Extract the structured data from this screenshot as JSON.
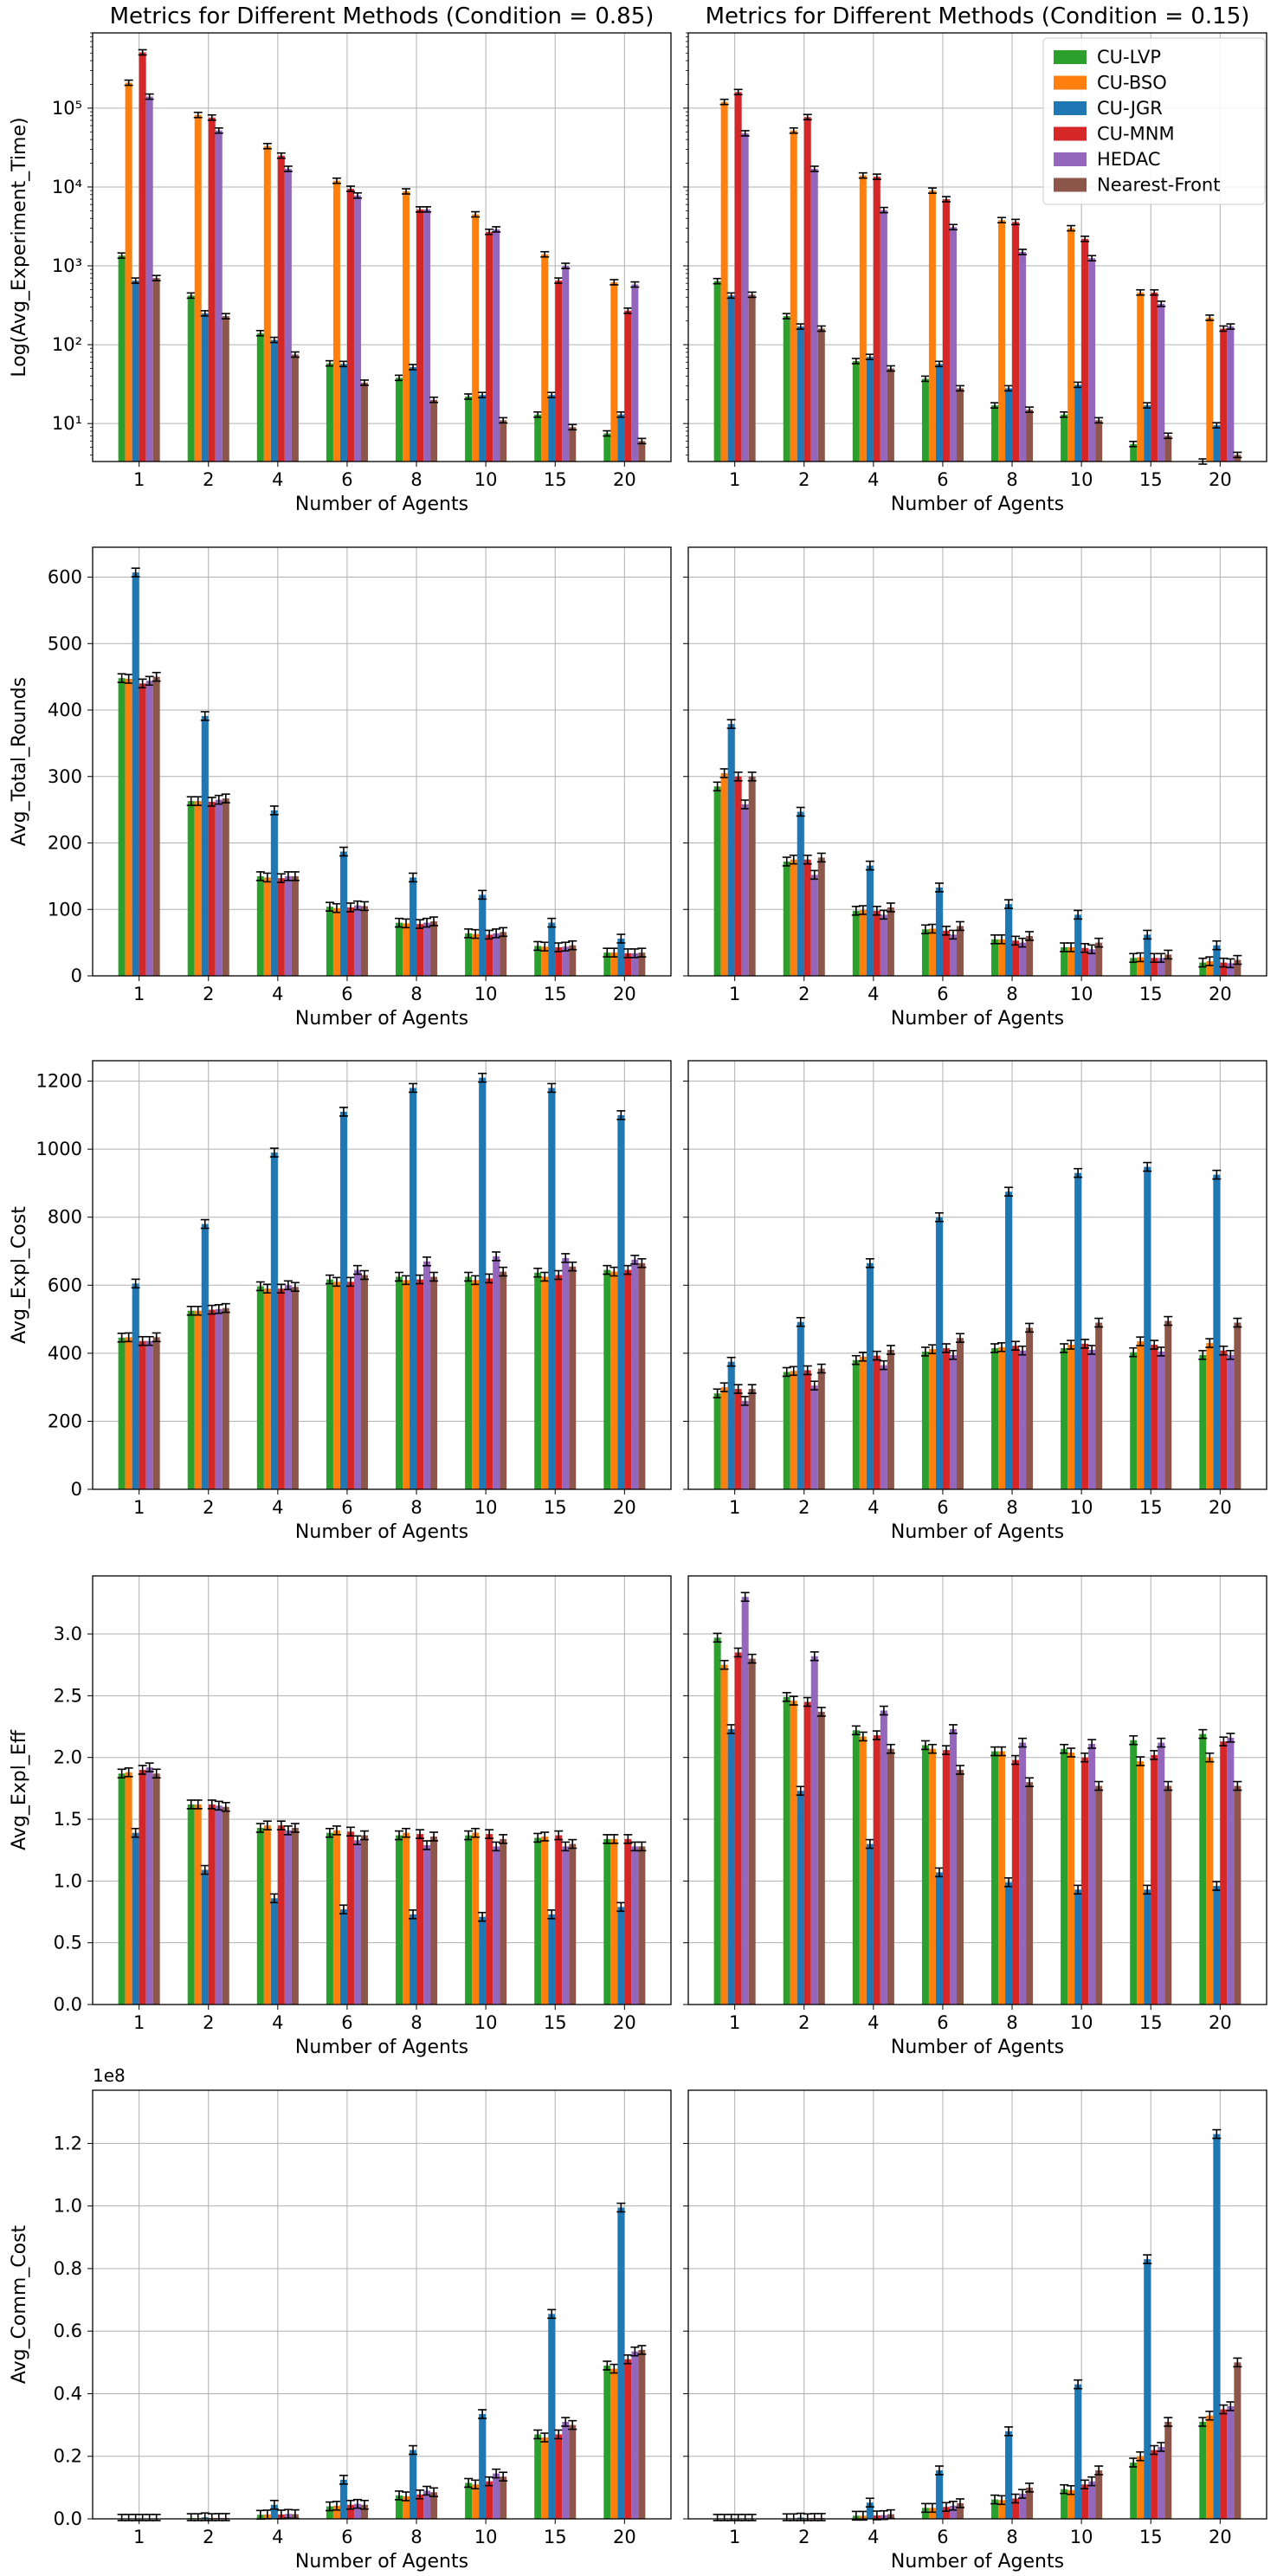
{
  "figure": {
    "legend": [
      "CU-LVP",
      "CU-BSO",
      "CU-JGR",
      "CU-MNM",
      "HEDAC",
      "Nearest-Front"
    ],
    "colors": {
      "CU-LVP": "#2ca02c",
      "CU-BSO": "#ff7f0e",
      "CU-JGR": "#1f77b4",
      "CU-MNM": "#d62728",
      "HEDAC": "#9467bd",
      "Nearest-Front": "#8c564b"
    }
  },
  "chart_data": [
    {
      "id": "time-085",
      "row": 0,
      "col": 0,
      "type": "bar",
      "scale": "log",
      "title": "Metrics for Different Methods (Condition = 0.85)",
      "xlabel": "Number of Agents",
      "ylabel": "Log(Avg_Experiment_Time)",
      "categories": [
        "1",
        "2",
        "4",
        "6",
        "8",
        "10",
        "15",
        "20"
      ],
      "ylim": [
        3.3,
        900000
      ],
      "yticks": [
        10,
        100,
        1000,
        10000,
        100000
      ],
      "yticklabels": [
        "10¹",
        "10²",
        "10³",
        "10⁴",
        "10⁵"
      ],
      "series": [
        {
          "name": "CU-LVP",
          "values": [
            1350,
            420,
            140,
            58,
            38,
            22,
            13,
            7.5
          ]
        },
        {
          "name": "CU-BSO",
          "values": [
            210000,
            82000,
            33000,
            12000,
            8800,
            4500,
            1400,
            620
          ]
        },
        {
          "name": "CU-JGR",
          "values": [
            650,
            250,
            115,
            57,
            52,
            23,
            23,
            13
          ]
        },
        {
          "name": "CU-MNM",
          "values": [
            510000,
            76000,
            25000,
            9500,
            5200,
            2700,
            650,
            270
          ]
        },
        {
          "name": "HEDAC",
          "values": [
            140000,
            52000,
            17000,
            7800,
            5200,
            2900,
            1000,
            580
          ]
        },
        {
          "name": "Nearest-Front",
          "values": [
            700,
            230,
            75,
            33,
            20,
            11,
            9,
            6
          ]
        }
      ]
    },
    {
      "id": "time-015",
      "row": 0,
      "col": 1,
      "type": "bar",
      "scale": "log",
      "title": "Metrics for Different Methods (Condition = 0.15)",
      "xlabel": "Number of Agents",
      "ylabel": "",
      "categories": [
        "1",
        "2",
        "4",
        "6",
        "8",
        "10",
        "15",
        "20"
      ],
      "ylim": [
        3.3,
        900000
      ],
      "yticks": [
        10,
        100,
        1000,
        10000,
        100000
      ],
      "yticklabels": [],
      "series": [
        {
          "name": "CU-LVP",
          "values": [
            640,
            230,
            62,
            37,
            17,
            13,
            5.5,
            3.2
          ]
        },
        {
          "name": "CU-BSO",
          "values": [
            120000,
            52000,
            14000,
            9000,
            3800,
            3000,
            460,
            220
          ]
        },
        {
          "name": "CU-JGR",
          "values": [
            420,
            170,
            70,
            57,
            28,
            31,
            17,
            9.5
          ]
        },
        {
          "name": "CU-MNM",
          "values": [
            160000,
            77000,
            13500,
            7000,
            3600,
            2200,
            460,
            160
          ]
        },
        {
          "name": "HEDAC",
          "values": [
            48000,
            17000,
            5100,
            3100,
            1500,
            1250,
            330,
            170
          ]
        },
        {
          "name": "Nearest-Front",
          "values": [
            430,
            160,
            50,
            28,
            15,
            11,
            7,
            4
          ]
        }
      ]
    },
    {
      "id": "rounds-085",
      "row": 1,
      "col": 0,
      "type": "bar",
      "scale": "linear",
      "xlabel": "Number of Agents",
      "ylabel": "Avg_Total_Rounds",
      "categories": [
        "1",
        "2",
        "4",
        "6",
        "8",
        "10",
        "15",
        "20"
      ],
      "ylim": [
        0,
        645
      ],
      "yticks": [
        0,
        100,
        200,
        300,
        400,
        500,
        600
      ],
      "series": [
        {
          "name": "CU-LVP",
          "values": [
            448,
            263,
            150,
            104,
            80,
            64,
            45,
            35
          ]
        },
        {
          "name": "CU-BSO",
          "values": [
            447,
            263,
            148,
            102,
            79,
            63,
            44,
            35
          ]
        },
        {
          "name": "CU-JGR",
          "values": [
            607,
            391,
            249,
            187,
            148,
            122,
            80,
            56
          ]
        },
        {
          "name": "CU-MNM",
          "values": [
            440,
            262,
            147,
            103,
            78,
            62,
            43,
            34
          ]
        },
        {
          "name": "HEDAC",
          "values": [
            444,
            265,
            150,
            106,
            80,
            64,
            44,
            34
          ]
        },
        {
          "name": "Nearest-Front",
          "values": [
            450,
            267,
            150,
            105,
            82,
            66,
            46,
            35
          ]
        }
      ]
    },
    {
      "id": "rounds-015",
      "row": 1,
      "col": 1,
      "type": "bar",
      "scale": "linear",
      "xlabel": "Number of Agents",
      "ylabel": "",
      "categories": [
        "1",
        "2",
        "4",
        "6",
        "8",
        "10",
        "15",
        "20"
      ],
      "ylim": [
        0,
        645
      ],
      "yticks": [
        0,
        100,
        200,
        300,
        400,
        500,
        600
      ],
      "yticklabels": [],
      "series": [
        {
          "name": "CU-LVP",
          "values": [
            285,
            172,
            98,
            70,
            55,
            43,
            27,
            20
          ]
        },
        {
          "name": "CU-BSO",
          "values": [
            305,
            175,
            99,
            71,
            55,
            43,
            28,
            22
          ]
        },
        {
          "name": "CU-JGR",
          "values": [
            379,
            247,
            166,
            133,
            108,
            92,
            62,
            46
          ]
        },
        {
          "name": "CU-MNM",
          "values": [
            300,
            175,
            98,
            68,
            53,
            42,
            27,
            20
          ]
        },
        {
          "name": "HEDAC",
          "values": [
            258,
            152,
            92,
            62,
            50,
            40,
            27,
            19
          ]
        },
        {
          "name": "Nearest-Front",
          "values": [
            300,
            178,
            103,
            75,
            60,
            50,
            32,
            24
          ]
        }
      ]
    },
    {
      "id": "cost-085",
      "row": 2,
      "col": 0,
      "type": "bar",
      "scale": "linear",
      "xlabel": "Number of Agents",
      "ylabel": "Avg_Expl_Cost",
      "categories": [
        "1",
        "2",
        "4",
        "6",
        "8",
        "10",
        "15",
        "20"
      ],
      "ylim": [
        0,
        1260
      ],
      "yticks": [
        0,
        200,
        400,
        600,
        800,
        1000,
        1200
      ],
      "series": [
        {
          "name": "CU-LVP",
          "values": [
            446,
            525,
            597,
            617,
            625,
            625,
            637,
            645
          ]
        },
        {
          "name": "CU-BSO",
          "values": [
            447,
            525,
            590,
            610,
            615,
            615,
            625,
            640
          ]
        },
        {
          "name": "CU-JGR",
          "values": [
            605,
            780,
            990,
            1110,
            1180,
            1210,
            1180,
            1100
          ]
        },
        {
          "name": "CU-MNM",
          "values": [
            436,
            528,
            590,
            610,
            617,
            620,
            630,
            645
          ]
        },
        {
          "name": "HEDAC",
          "values": [
            436,
            530,
            600,
            645,
            670,
            685,
            680,
            675
          ]
        },
        {
          "name": "Nearest-Front",
          "values": [
            447,
            533,
            595,
            630,
            625,
            640,
            655,
            665
          ]
        }
      ]
    },
    {
      "id": "cost-015",
      "row": 2,
      "col": 1,
      "type": "bar",
      "scale": "linear",
      "xlabel": "Number of Agents",
      "ylabel": "",
      "categories": [
        "1",
        "2",
        "4",
        "6",
        "8",
        "10",
        "15",
        "20"
      ],
      "ylim": [
        0,
        1260
      ],
      "yticks": [
        0,
        200,
        400,
        600,
        800,
        1000,
        1200
      ],
      "yticklabels": [],
      "series": [
        {
          "name": "CU-LVP",
          "values": [
            282,
            345,
            380,
            405,
            415,
            415,
            403,
            395
          ]
        },
        {
          "name": "CU-BSO",
          "values": [
            300,
            348,
            390,
            412,
            418,
            425,
            435,
            430
          ]
        },
        {
          "name": "CU-JGR",
          "values": [
            375,
            492,
            665,
            800,
            875,
            930,
            948,
            925
          ]
        },
        {
          "name": "CU-MNM",
          "values": [
            295,
            350,
            393,
            415,
            422,
            428,
            425,
            408
          ]
        },
        {
          "name": "HEDAC",
          "values": [
            260,
            305,
            365,
            395,
            408,
            410,
            405,
            395
          ]
        },
        {
          "name": "Nearest-Front",
          "values": [
            295,
            355,
            410,
            445,
            475,
            490,
            495,
            490
          ]
        }
      ]
    },
    {
      "id": "eff-085",
      "row": 3,
      "col": 0,
      "type": "bar",
      "scale": "linear",
      "xlabel": "Number of Agents",
      "ylabel": "Avg_Expl_Eff",
      "categories": [
        "1",
        "2",
        "4",
        "6",
        "8",
        "10",
        "15",
        "20"
      ],
      "ylim": [
        0,
        3.47
      ],
      "yticks": [
        0,
        0.5,
        1.0,
        1.5,
        2.0,
        2.5,
        3.0
      ],
      "yticklabels": [
        "0.0",
        "0.5",
        "1.0",
        "1.5",
        "2.0",
        "2.5",
        "3.0"
      ],
      "series": [
        {
          "name": "CU-LVP",
          "values": [
            1.87,
            1.62,
            1.43,
            1.39,
            1.37,
            1.37,
            1.35,
            1.34
          ]
        },
        {
          "name": "CU-BSO",
          "values": [
            1.88,
            1.62,
            1.45,
            1.41,
            1.39,
            1.39,
            1.36,
            1.34
          ]
        },
        {
          "name": "CU-JGR",
          "values": [
            1.39,
            1.09,
            0.86,
            0.77,
            0.73,
            0.71,
            0.73,
            0.79
          ]
        },
        {
          "name": "CU-MNM",
          "values": [
            1.9,
            1.62,
            1.45,
            1.4,
            1.38,
            1.38,
            1.37,
            1.34
          ]
        },
        {
          "name": "HEDAC",
          "values": [
            1.92,
            1.61,
            1.41,
            1.33,
            1.29,
            1.28,
            1.28,
            1.28
          ]
        },
        {
          "name": "Nearest-Front",
          "values": [
            1.87,
            1.6,
            1.43,
            1.37,
            1.36,
            1.34,
            1.3,
            1.28
          ]
        }
      ]
    },
    {
      "id": "eff-015",
      "row": 3,
      "col": 1,
      "type": "bar",
      "scale": "linear",
      "xlabel": "Number of Agents",
      "ylabel": "",
      "categories": [
        "1",
        "2",
        "4",
        "6",
        "8",
        "10",
        "15",
        "20"
      ],
      "ylim": [
        0,
        3.47
      ],
      "yticks": [
        0,
        0.5,
        1.0,
        1.5,
        2.0,
        2.5,
        3.0
      ],
      "yticklabels": [],
      "series": [
        {
          "name": "CU-LVP",
          "values": [
            2.97,
            2.49,
            2.22,
            2.1,
            2.05,
            2.07,
            2.14,
            2.19
          ]
        },
        {
          "name": "CU-BSO",
          "values": [
            2.75,
            2.46,
            2.17,
            2.07,
            2.05,
            2.04,
            1.97,
            2.0
          ]
        },
        {
          "name": "CU-JGR",
          "values": [
            2.23,
            1.73,
            1.3,
            1.07,
            0.99,
            0.93,
            0.93,
            0.96
          ]
        },
        {
          "name": "CU-MNM",
          "values": [
            2.85,
            2.45,
            2.18,
            2.06,
            1.98,
            2.0,
            2.02,
            2.13
          ]
        },
        {
          "name": "HEDAC",
          "values": [
            3.3,
            2.82,
            2.38,
            2.23,
            2.12,
            2.11,
            2.12,
            2.16
          ]
        },
        {
          "name": "Nearest-Front",
          "values": [
            2.8,
            2.37,
            2.07,
            1.9,
            1.8,
            1.77,
            1.77,
            1.77
          ]
        }
      ]
    },
    {
      "id": "comm-085",
      "row": 4,
      "col": 0,
      "type": "bar",
      "scale": "linear",
      "xlabel": "Number of Agents",
      "ylabel": "Avg_Comm_Cost",
      "offset_text": "1e8",
      "categories": [
        "1",
        "2",
        "4",
        "6",
        "8",
        "10",
        "15",
        "20"
      ],
      "ylim": [
        0,
        1.37
      ],
      "yticks": [
        0,
        0.2,
        0.4,
        0.6,
        0.8,
        1.0,
        1.2
      ],
      "yticklabels": [
        "0.0",
        "0.2",
        "0.4",
        "0.6",
        "0.8",
        "1.0",
        "1.2"
      ],
      "series": [
        {
          "name": "CU-LVP",
          "values": [
            0.0003,
            0.0025,
            0.013,
            0.04,
            0.075,
            0.115,
            0.27,
            0.49
          ]
        },
        {
          "name": "CU-BSO",
          "values": [
            0.0003,
            0.0025,
            0.014,
            0.042,
            0.072,
            0.11,
            0.26,
            0.48
          ]
        },
        {
          "name": "CU-JGR",
          "values": [
            0.0004,
            0.005,
            0.045,
            0.125,
            0.22,
            0.335,
            0.655,
            0.995
          ]
        },
        {
          "name": "CU-MNM",
          "values": [
            0.0003,
            0.0025,
            0.014,
            0.045,
            0.078,
            0.12,
            0.27,
            0.51
          ]
        },
        {
          "name": "HEDAC",
          "values": [
            0.0003,
            0.003,
            0.016,
            0.048,
            0.09,
            0.145,
            0.31,
            0.535
          ]
        },
        {
          "name": "Nearest-Front",
          "values": [
            0.0003,
            0.003,
            0.015,
            0.045,
            0.085,
            0.135,
            0.3,
            0.54
          ]
        }
      ]
    },
    {
      "id": "comm-015",
      "row": 4,
      "col": 1,
      "type": "bar",
      "scale": "linear",
      "xlabel": "Number of Agents",
      "ylabel": "",
      "categories": [
        "1",
        "2",
        "4",
        "6",
        "8",
        "10",
        "15",
        "20"
      ],
      "ylim": [
        0,
        1.37
      ],
      "yticks": [
        0,
        0.2,
        0.4,
        0.6,
        0.8,
        1.0,
        1.2
      ],
      "yticklabels": [],
      "series": [
        {
          "name": "CU-LVP",
          "values": [
            0.0003,
            0.002,
            0.01,
            0.035,
            0.062,
            0.095,
            0.18,
            0.31
          ]
        },
        {
          "name": "CU-BSO",
          "values": [
            0.0003,
            0.002,
            0.01,
            0.035,
            0.06,
            0.092,
            0.2,
            0.33
          ]
        },
        {
          "name": "CU-JGR",
          "values": [
            0.0004,
            0.004,
            0.052,
            0.155,
            0.28,
            0.43,
            0.83,
            1.23
          ]
        },
        {
          "name": "CU-MNM",
          "values": [
            0.0003,
            0.002,
            0.011,
            0.038,
            0.065,
            0.11,
            0.22,
            0.35
          ]
        },
        {
          "name": "HEDAC",
          "values": [
            0.0003,
            0.003,
            0.012,
            0.042,
            0.08,
            0.12,
            0.23,
            0.36
          ]
        },
        {
          "name": "Nearest-Front",
          "values": [
            0.0003,
            0.003,
            0.015,
            0.05,
            0.1,
            0.155,
            0.31,
            0.5
          ]
        }
      ]
    }
  ]
}
